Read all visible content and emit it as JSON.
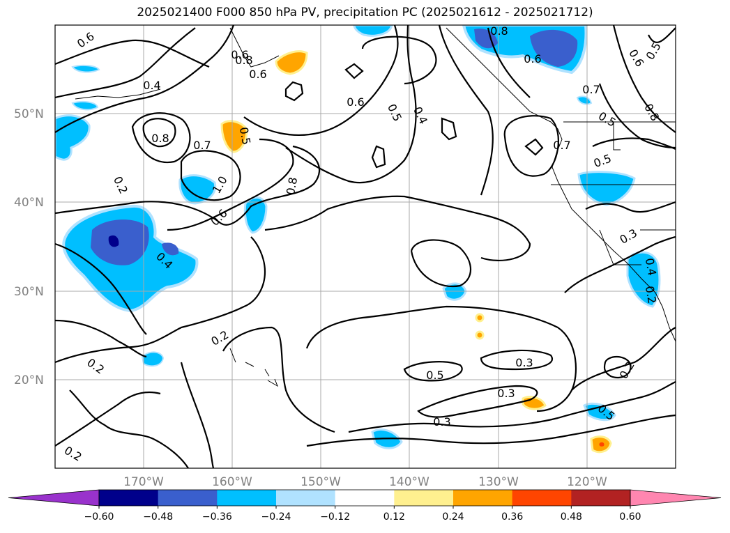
{
  "title": "2025021400 F000 850 hPa PV, precipitation PC (2025021612 - 2025021712)",
  "map": {
    "lat_labels": [
      "50°N",
      "40°N",
      "30°N",
      "20°N"
    ],
    "lon_labels": [
      "170°W",
      "160°W",
      "150°W",
      "140°W",
      "130°W",
      "120°W"
    ],
    "extent": {
      "lon_min": -180,
      "lon_max": -110,
      "lat_min": 10,
      "lat_max": 60
    },
    "gridlines": true
  },
  "contour_labels": [
    "0.6",
    "0.4",
    "0.8",
    "0.6",
    "0.6",
    "0.5",
    "0.4",
    "0.6",
    "0.8",
    "0.6",
    "0.5",
    "0.6",
    "0.7",
    "0.8",
    "0.8",
    "0.7",
    "0.5",
    "0.2",
    "1.0",
    "0.6",
    "0.8",
    "0.5",
    "0.7",
    "0.5",
    "0.4",
    "0.2",
    "0.2",
    "0.2",
    "0.3",
    "0.4",
    "0.2",
    "0.3",
    "0.5",
    "0.3",
    "0.3",
    "0.5",
    "0.2"
  ],
  "colorbar": {
    "ticks": [
      "−0.60",
      "−0.48",
      "−0.36",
      "−0.24",
      "−0.12",
      "0.12",
      "0.24",
      "0.36",
      "0.48",
      "0.60"
    ],
    "colors": [
      "#9932cc",
      "#00008b",
      "#3a5fcd",
      "#00bfff",
      "#b0e2ff",
      "#ffffff",
      "#fff08f",
      "#ffa500",
      "#ff4500",
      "#b22222",
      "#ff86b0"
    ]
  }
}
